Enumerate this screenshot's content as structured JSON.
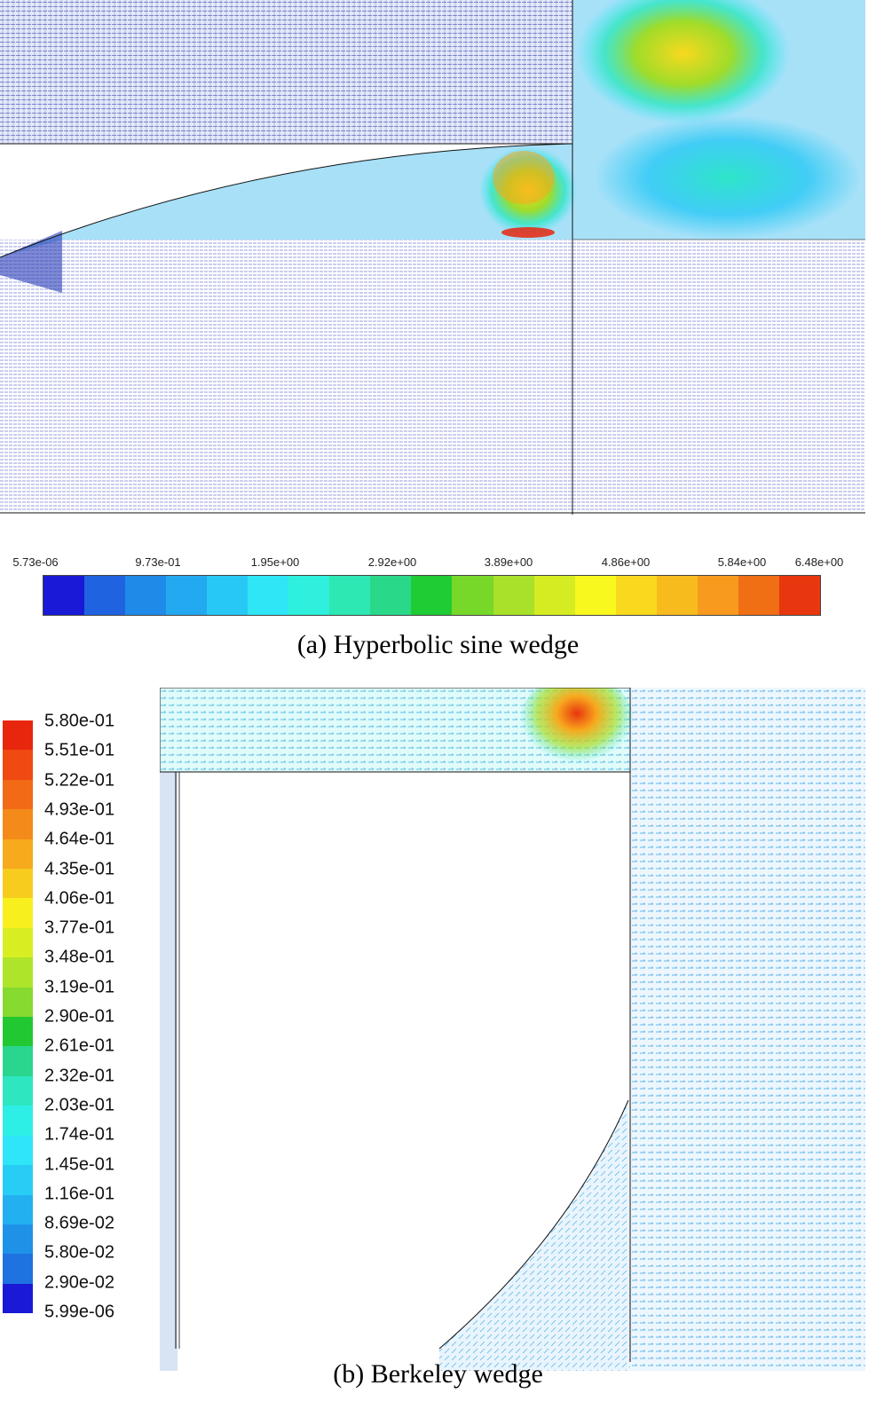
{
  "panel_a": {
    "caption": "(a) Hyperbolic sine wedge",
    "colorbar_ticks": [
      "5.73e-06",
      "9.73e-01",
      "1.95e+00",
      "2.92e+00",
      "3.89e+00",
      "4.86e+00",
      "5.84e+00",
      "6.48e+00"
    ],
    "colorbar_colors": [
      "#1a1ad6",
      "#1f63e0",
      "#1f8ae8",
      "#23a9f0",
      "#28c8f5",
      "#2ee6f5",
      "#2ef0dc",
      "#2ee8b4",
      "#2ad88a",
      "#1fcc33",
      "#77d82a",
      "#a8e02a",
      "#d6ec22",
      "#f8f81e",
      "#f8d91e",
      "#f8bb1e",
      "#f89a1e",
      "#f06e14",
      "#e8360e"
    ]
  },
  "panel_b": {
    "caption": "(b) Berkeley wedge",
    "colorbar_ticks": [
      "5.80e-01",
      "5.51e-01",
      "5.22e-01",
      "4.93e-01",
      "4.64e-01",
      "4.35e-01",
      "4.06e-01",
      "3.77e-01",
      "3.48e-01",
      "3.19e-01",
      "2.90e-01",
      "2.61e-01",
      "2.32e-01",
      "2.03e-01",
      "1.74e-01",
      "1.45e-01",
      "1.16e-01",
      "8.69e-02",
      "5.80e-02",
      "2.90e-02",
      "5.99e-06"
    ],
    "colorbar_colors": [
      "#e8260e",
      "#f04a12",
      "#f26a16",
      "#f48a1a",
      "#f6aa1c",
      "#f8cc1e",
      "#f8f01e",
      "#d8ee22",
      "#aee42a",
      "#86da30",
      "#22c832",
      "#2ad68e",
      "#2ee6c0",
      "#2eeee6",
      "#2ee6f8",
      "#28cdf6",
      "#23b0f0",
      "#1f92e8",
      "#1f72e0",
      "#1a1ad6"
    ]
  }
}
